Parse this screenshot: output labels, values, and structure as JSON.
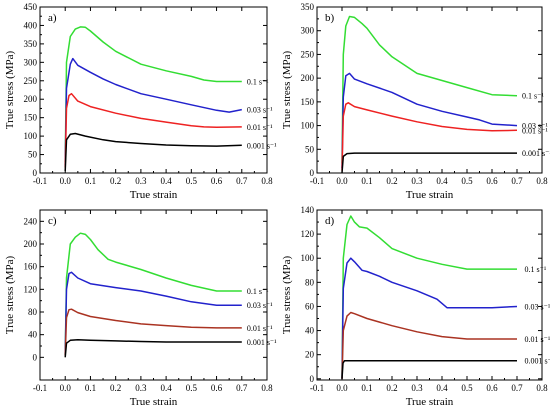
{
  "chart_data": [
    {
      "type": "line",
      "panel_label": "a)",
      "xlabel": "True strain",
      "ylabel": "True stress (MPa)",
      "xlim": [
        -0.1,
        0.8
      ],
      "ylim": [
        0,
        450
      ],
      "xticks": [
        -0.1,
        0.0,
        0.1,
        0.2,
        0.3,
        0.4,
        0.5,
        0.6,
        0.7,
        0.8
      ],
      "xtick_labels": [
        "-0.1",
        "0.0",
        "0.1",
        "0.2",
        "0.3",
        "0.4",
        "0.5",
        "0.6",
        "0.7",
        "0.8"
      ],
      "yticks": [
        0,
        50,
        100,
        150,
        200,
        250,
        300,
        350,
        400,
        450
      ],
      "ytick_labels": [
        "0",
        "50",
        "100",
        "150",
        "200",
        "250",
        "300",
        "350",
        "400",
        "450"
      ],
      "grid": false,
      "series": [
        {
          "name": "0.1 s⁻¹",
          "color": "#33dd33",
          "label_x": 0.72,
          "x": [
            0,
            0.005,
            0.02,
            0.04,
            0.06,
            0.08,
            0.1,
            0.15,
            0.2,
            0.3,
            0.4,
            0.5,
            0.55,
            0.6,
            0.7
          ],
          "y": [
            30,
            300,
            370,
            390,
            396,
            395,
            385,
            355,
            330,
            295,
            277,
            262,
            252,
            248,
            248
          ]
        },
        {
          "name": "0.03 s⁻¹",
          "color": "#2222cc",
          "label_x": 0.72,
          "x": [
            0,
            0.005,
            0.02,
            0.03,
            0.05,
            0.1,
            0.15,
            0.2,
            0.3,
            0.4,
            0.5,
            0.6,
            0.65,
            0.7
          ],
          "y": [
            20,
            230,
            295,
            310,
            292,
            273,
            255,
            240,
            215,
            200,
            185,
            170,
            165,
            172
          ]
        },
        {
          "name": "0.01 s⁻¹",
          "color": "#ee2222",
          "label_x": 0.72,
          "x": [
            0,
            0.005,
            0.015,
            0.025,
            0.05,
            0.1,
            0.2,
            0.3,
            0.4,
            0.5,
            0.55,
            0.6,
            0.7
          ],
          "y": [
            15,
            175,
            210,
            215,
            195,
            180,
            162,
            148,
            138,
            128,
            125,
            124,
            125
          ]
        },
        {
          "name": "0.001 s⁻¹",
          "color": "#000000",
          "label_x": 0.72,
          "x": [
            0,
            0.005,
            0.02,
            0.04,
            0.08,
            0.15,
            0.2,
            0.3,
            0.4,
            0.5,
            0.6,
            0.7
          ],
          "y": [
            5,
            90,
            105,
            107,
            100,
            90,
            85,
            80,
            76,
            74,
            73,
            75
          ]
        }
      ]
    },
    {
      "type": "line",
      "panel_label": "b)",
      "xlabel": "True strain",
      "ylabel": "True stress (MPa)",
      "xlim": [
        -0.1,
        0.8
      ],
      "ylim": [
        0,
        350
      ],
      "xticks": [
        -0.1,
        0.0,
        0.1,
        0.2,
        0.3,
        0.4,
        0.5,
        0.6,
        0.7,
        0.8
      ],
      "xtick_labels": [
        "-0.1",
        "0.0",
        "0.1",
        "0.2",
        "0.3",
        "0.4",
        "0.5",
        "0.6",
        "0.7",
        "0.8"
      ],
      "yticks": [
        0,
        50,
        100,
        150,
        200,
        250,
        300,
        350
      ],
      "ytick_labels": [
        "0",
        "50",
        "100",
        "150",
        "200",
        "250",
        "300",
        "350"
      ],
      "grid": false,
      "series": [
        {
          "name": "0.1 s⁻¹",
          "color": "#33dd33",
          "label_x": 0.72,
          "x": [
            0,
            0.005,
            0.015,
            0.03,
            0.05,
            0.08,
            0.1,
            0.15,
            0.2,
            0.3,
            0.4,
            0.5,
            0.6,
            0.7
          ],
          "y": [
            20,
            250,
            310,
            330,
            328,
            315,
            305,
            270,
            245,
            210,
            195,
            180,
            165,
            163
          ]
        },
        {
          "name": "0.03 s⁻¹",
          "color": "#2222cc",
          "label_x": 0.72,
          "x": [
            0,
            0.005,
            0.015,
            0.03,
            0.05,
            0.1,
            0.2,
            0.3,
            0.4,
            0.5,
            0.55,
            0.6,
            0.7
          ],
          "y": [
            10,
            160,
            205,
            210,
            198,
            188,
            170,
            145,
            130,
            118,
            112,
            103,
            100
          ]
        },
        {
          "name": "0.01 s⁻¹",
          "color": "#ee2222",
          "label_x": 0.72,
          "x": [
            0,
            0.005,
            0.015,
            0.025,
            0.05,
            0.1,
            0.2,
            0.3,
            0.4,
            0.5,
            0.6,
            0.7
          ],
          "y": [
            5,
            120,
            145,
            148,
            140,
            133,
            120,
            108,
            98,
            92,
            89,
            90
          ]
        },
        {
          "name": "0.001 s⁻¹",
          "color": "#000000",
          "label_x": 0.72,
          "x": [
            0,
            0.005,
            0.02,
            0.05,
            0.1,
            0.2,
            0.3,
            0.4,
            0.5,
            0.6,
            0.7
          ],
          "y": [
            0,
            35,
            41,
            42,
            42,
            42,
            42,
            42,
            42,
            42,
            42
          ]
        }
      ]
    },
    {
      "type": "line",
      "panel_label": "c)",
      "xlabel": "True strain",
      "ylabel": "True stress (MPa)",
      "xlim": [
        -0.1,
        0.8
      ],
      "ylim": [
        -40,
        260
      ],
      "xticks": [
        -0.1,
        0.0,
        0.1,
        0.2,
        0.3,
        0.4,
        0.5,
        0.6,
        0.7,
        0.8
      ],
      "xtick_labels": [
        "-0.1",
        "0.0",
        "0.1",
        "0.2",
        "0.3",
        "0.4",
        "0.5",
        "0.6",
        "0.7",
        "0.8"
      ],
      "yticks": [
        0,
        40,
        80,
        120,
        160,
        200,
        240
      ],
      "ytick_labels": [
        "0",
        "40",
        "80",
        "120",
        "160",
        "200",
        "240"
      ],
      "grid": false,
      "series": [
        {
          "name": "0.1 s⁻¹",
          "color": "#33dd33",
          "label_x": 0.72,
          "x": [
            0,
            0.005,
            0.02,
            0.04,
            0.06,
            0.08,
            0.1,
            0.13,
            0.17,
            0.2,
            0.3,
            0.4,
            0.5,
            0.6,
            0.7
          ],
          "y": [
            5,
            140,
            200,
            212,
            219,
            217,
            208,
            190,
            173,
            168,
            155,
            140,
            127,
            117,
            117
          ]
        },
        {
          "name": "0.03 s⁻¹",
          "color": "#2222cc",
          "label_x": 0.72,
          "x": [
            0,
            0.005,
            0.015,
            0.025,
            0.05,
            0.1,
            0.2,
            0.3,
            0.4,
            0.5,
            0.6,
            0.7
          ],
          "y": [
            5,
            120,
            148,
            150,
            140,
            130,
            123,
            117,
            108,
            98,
            92,
            92
          ]
        },
        {
          "name": "0.01 s⁻¹",
          "color": "#aa3322",
          "label_x": 0.72,
          "x": [
            0,
            0.005,
            0.015,
            0.025,
            0.05,
            0.1,
            0.2,
            0.3,
            0.4,
            0.5,
            0.6,
            0.7
          ],
          "y": [
            3,
            70,
            84,
            85,
            79,
            72,
            65,
            59,
            56,
            53,
            52,
            52
          ]
        },
        {
          "name": "0.001 s⁻¹",
          "color": "#000000",
          "label_x": 0.72,
          "x": [
            0,
            0.005,
            0.02,
            0.05,
            0.1,
            0.2,
            0.3,
            0.4,
            0.5,
            0.6,
            0.7
          ],
          "y": [
            0,
            25,
            30,
            31,
            30,
            29,
            28,
            27,
            27,
            27,
            27
          ]
        }
      ]
    },
    {
      "type": "line",
      "panel_label": "d)",
      "xlabel": "True strain",
      "ylabel": "True stress (MPa)",
      "xlim": [
        -0.1,
        0.8
      ],
      "ylim": [
        -1,
        140
      ],
      "xticks": [
        -0.1,
        0.0,
        0.1,
        0.2,
        0.3,
        0.4,
        0.5,
        0.6,
        0.7,
        0.8
      ],
      "xtick_labels": [
        "-0.1",
        "0.0",
        "0.1",
        "0.2",
        "0.3",
        "0.4",
        "0.5",
        "0.6",
        "0.7",
        "0.8"
      ],
      "yticks": [
        0,
        20,
        40,
        60,
        80,
        100,
        120,
        140
      ],
      "ytick_labels": [
        "0",
        "20",
        "40",
        "60",
        "80",
        "100",
        "120",
        "140"
      ],
      "grid": false,
      "series": [
        {
          "name": "0.1 s⁻¹",
          "color": "#33dd33",
          "label_x": 0.73,
          "x": [
            0,
            0.005,
            0.02,
            0.035,
            0.05,
            0.07,
            0.1,
            0.15,
            0.2,
            0.3,
            0.4,
            0.5,
            0.6,
            0.7
          ],
          "y": [
            0,
            100,
            128,
            135,
            130,
            126,
            125,
            117,
            108,
            100,
            95,
            91,
            91,
            91
          ]
        },
        {
          "name": "0.03 s⁻¹",
          "color": "#2222cc",
          "label_x": 0.73,
          "x": [
            0,
            0.005,
            0.02,
            0.035,
            0.05,
            0.08,
            0.1,
            0.15,
            0.2,
            0.3,
            0.38,
            0.42,
            0.5,
            0.6,
            0.7
          ],
          "y": [
            0,
            75,
            96,
            100,
            97,
            90,
            89,
            85,
            80,
            73,
            66,
            59,
            59,
            59,
            60
          ]
        },
        {
          "name": "0.01 s⁻¹",
          "color": "#aa3322",
          "label_x": 0.73,
          "x": [
            0,
            0.005,
            0.02,
            0.035,
            0.05,
            0.1,
            0.2,
            0.3,
            0.4,
            0.5,
            0.6,
            0.7
          ],
          "y": [
            0,
            40,
            52,
            55,
            54,
            50,
            44,
            39,
            35,
            33,
            33,
            33
          ]
        },
        {
          "name": "0.001 s⁻¹",
          "color": "#000000",
          "label_x": 0.73,
          "x": [
            0,
            0.004,
            0.01,
            0.05,
            0.1,
            0.2,
            0.3,
            0.4,
            0.5,
            0.6,
            0.7
          ],
          "y": [
            0,
            13,
            15,
            15,
            15,
            15,
            15,
            15,
            15,
            15,
            15
          ]
        }
      ]
    }
  ]
}
